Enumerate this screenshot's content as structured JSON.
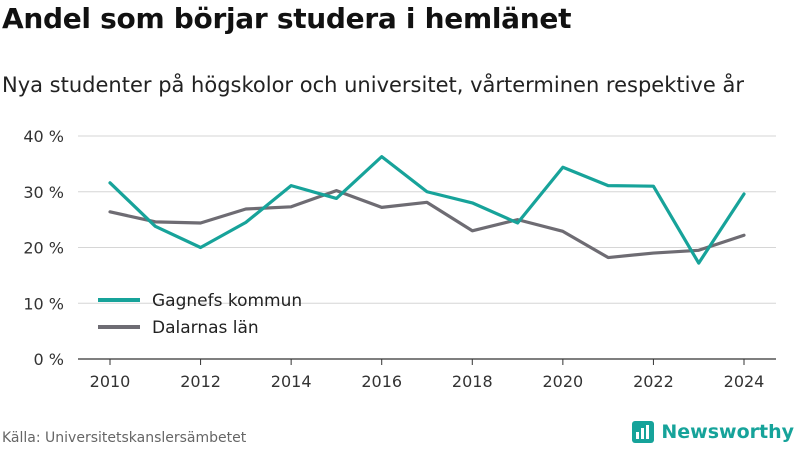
{
  "title": "Andel som börjar studera i hemlänet",
  "subtitle": "Nya studenter på högskolor och universitet, vårterminen respektive år",
  "source": "Källa: Universitetskanslersämbetet",
  "brand": {
    "name": "Newsworthy",
    "icon": "newsworthy-logo-icon",
    "color": "#16a39a"
  },
  "chart_data": {
    "type": "line",
    "x": [
      2010,
      2011,
      2012,
      2013,
      2014,
      2015,
      2016,
      2017,
      2018,
      2019,
      2020,
      2021,
      2022,
      2023,
      2024
    ],
    "x_ticks": [
      2010,
      2012,
      2014,
      2016,
      2018,
      2020,
      2022,
      2024
    ],
    "ylim": [
      0,
      40
    ],
    "y_ticks": [
      0,
      10,
      20,
      30,
      40
    ],
    "y_tick_labels": [
      "0 %",
      "10 %",
      "20 %",
      "30 %",
      "40 %"
    ],
    "grid": "horizontal",
    "legend_position": "bottom-left",
    "series": [
      {
        "name": "Gagnefs kommun",
        "color": "#17a39a",
        "values": [
          31.6,
          23.8,
          20.0,
          24.5,
          31.1,
          28.8,
          36.3,
          30.0,
          28.0,
          24.4,
          34.4,
          31.1,
          31.0,
          17.2,
          29.6
        ]
      },
      {
        "name": "Dalarnas län",
        "color": "#6e6c73",
        "values": [
          26.4,
          24.6,
          24.4,
          26.9,
          27.3,
          30.2,
          27.2,
          28.1,
          23.0,
          25.0,
          22.9,
          18.2,
          19.0,
          19.5,
          22.2
        ]
      }
    ]
  }
}
